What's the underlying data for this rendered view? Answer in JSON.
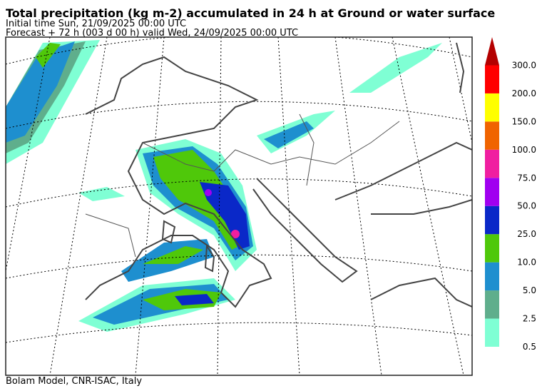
{
  "header": {
    "title": "Total precipitation (kg m-2) accumulated in  24 h at Ground or water surface",
    "initial_time": "Initial time  Sun, 21/09/2025  00:00 UTC",
    "forecast": "Forecast  +  72 h  (003 d 00 h)  valid Wed, 24/09/2025 00:00 UTC"
  },
  "legend": {
    "items": [
      {
        "label": "0.5",
        "color": "#7fffd4"
      },
      {
        "label": "2.5",
        "color": "#5fae8c"
      },
      {
        "label": "5.0",
        "color": "#1e8fcf"
      },
      {
        "label": "10.0",
        "color": "#4fc80a"
      },
      {
        "label": "25.0",
        "color": "#0a28c8"
      },
      {
        "label": "50.0",
        "color": "#a000f0"
      },
      {
        "label": "75.0",
        "color": "#f01ea0"
      },
      {
        "label": "100.0",
        "color": "#f06400"
      },
      {
        "label": "150.0",
        "color": "#ffff00"
      },
      {
        "label": "200.0",
        "color": "#ff0000"
      },
      {
        "label": "300.0",
        "color": "#b40000"
      }
    ]
  },
  "footer": "Bolam Model, CNR-ISAC, Italy"
}
